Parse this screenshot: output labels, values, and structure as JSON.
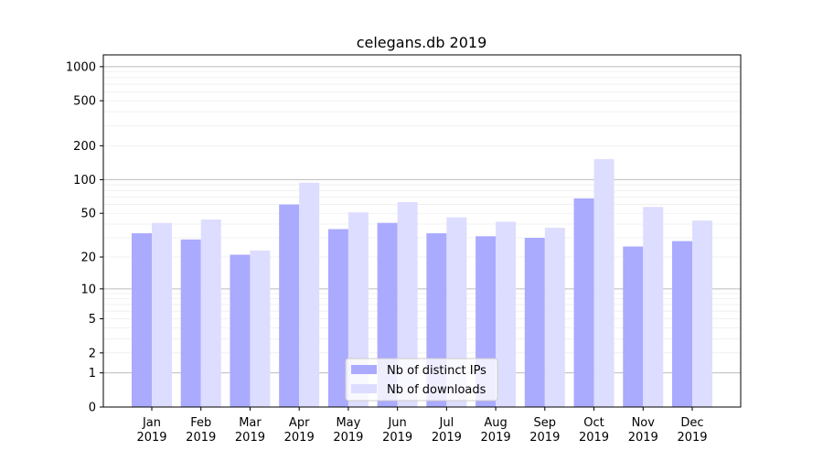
{
  "chart_data": {
    "type": "bar",
    "title": "celegans.db 2019",
    "xlabel": "",
    "ylabel": "",
    "yscale": "symlog (log10(1+y))",
    "ylim": [
      0,
      1270
    ],
    "yticks": [
      0,
      1,
      2,
      5,
      10,
      20,
      50,
      100,
      200,
      500,
      1000
    ],
    "ytick_labels": [
      "0",
      "1",
      "2",
      "5",
      "10",
      "20",
      "50",
      "100",
      "200",
      "500",
      "1000"
    ],
    "grid": "horizontal, major and minor",
    "legend_placement": "bottom-center",
    "categories": [
      "Jan\n2019",
      "Feb\n2019",
      "Mar\n2019",
      "Apr\n2019",
      "May\n2019",
      "Jun\n2019",
      "Jul\n2019",
      "Aug\n2019",
      "Sep\n2019",
      "Oct\n2019",
      "Nov\n2019",
      "Dec\n2019"
    ],
    "series": [
      {
        "name": "Nb of distinct IPs",
        "color": "#aaaaff",
        "values": [
          33,
          29,
          21,
          60,
          36,
          41,
          33,
          31,
          30,
          68,
          25,
          28
        ]
      },
      {
        "name": "Nb of downloads",
        "color": "#ddddff",
        "values": [
          41,
          44,
          23,
          94,
          51,
          63,
          46,
          42,
          37,
          152,
          57,
          43
        ]
      }
    ]
  }
}
